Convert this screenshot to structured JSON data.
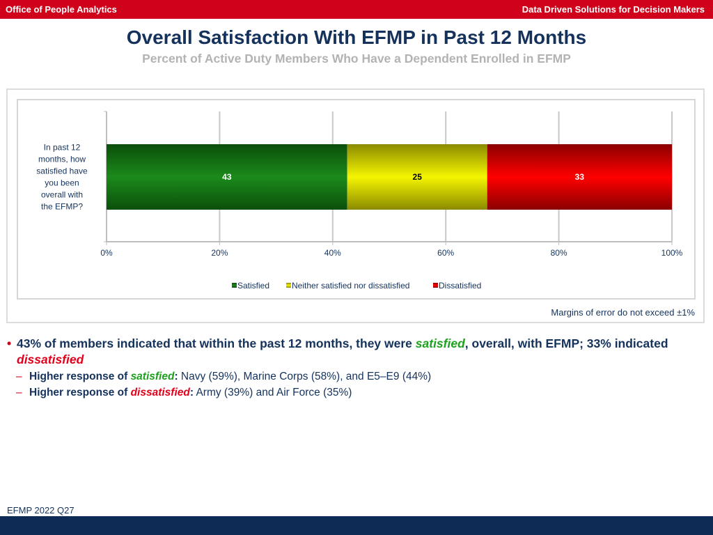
{
  "header": {
    "left": "Office of People Analytics",
    "right": "Data Driven Solutions for Decision Makers"
  },
  "title": "Overall Satisfaction With EFMP in Past 12 Months",
  "subtitle": "Percent of Active Duty Members Who Have a Dependent Enrolled in EFMP",
  "chart_data": {
    "type": "bar",
    "orientation": "horizontal",
    "stacked": true,
    "categories": [
      "In past 12 months, how satisfied have you been overall with the EFMP?"
    ],
    "series": [
      {
        "name": "Satisfied",
        "values": [
          43
        ],
        "color": "#1b8a1b"
      },
      {
        "name": "Neither satisfied nor dissatisfied",
        "values": [
          25
        ],
        "color": "#f2f200"
      },
      {
        "name": "Dissatisfied",
        "values": [
          33
        ],
        "color": "#ee0000"
      }
    ],
    "xlim": [
      0,
      100
    ],
    "x_ticks": [
      "0%",
      "20%",
      "40%",
      "60%",
      "80%",
      "100%"
    ],
    "grid": true,
    "legend_position": "bottom"
  },
  "margin_note": "Margins of error do not exceed ±1%",
  "bullets": {
    "main_a": "43% of members indicated that within the past 12 months, they were ",
    "main_b": "satisfied",
    "main_c": ", overall, with EFMP; 33% indicated ",
    "main_d": "dissatisfied",
    "sub1_a": "Higher response of ",
    "sub1_b": "satisfied",
    "sub1_c": ":",
    "sub1_d": "  Navy (59%), Marine Corps (58%), and E5–E9 (44%)",
    "sub2_a": "Higher response of ",
    "sub2_b": "dissatisfied",
    "sub2_c": ":",
    "sub2_d": "  Army (39%) and Air Force (35%)"
  },
  "footer": {
    "source": "EFMP 2022 Q27"
  }
}
